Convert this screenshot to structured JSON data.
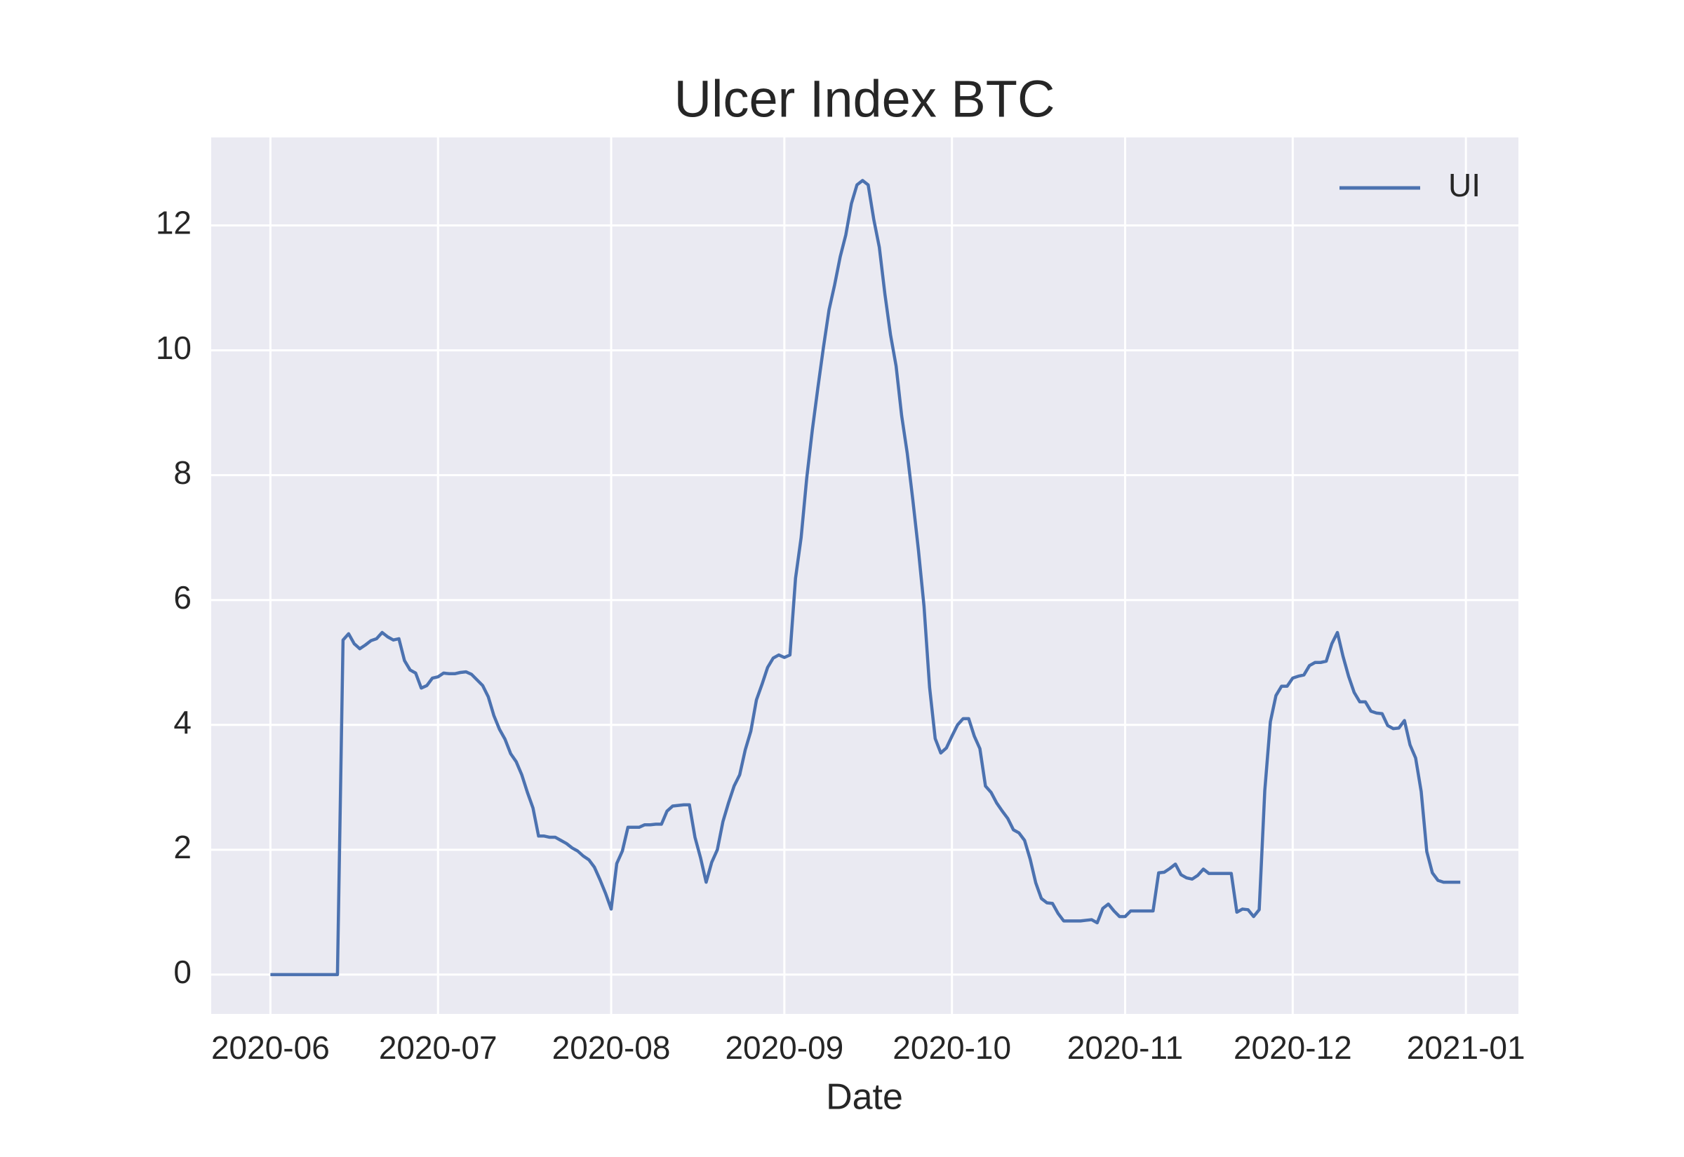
{
  "chart_data": {
    "type": "line",
    "title": "Ulcer Index BTC",
    "xlabel": "Date",
    "x": [
      0,
      1,
      2,
      3,
      4,
      5,
      6,
      7,
      8,
      9,
      10,
      11,
      12,
      13,
      14,
      15,
      16,
      17,
      18,
      19,
      20,
      21,
      22,
      23,
      24,
      25,
      26,
      27,
      28,
      29,
      30,
      31,
      32,
      33,
      34,
      35,
      36,
      37,
      38,
      39,
      40,
      41,
      42,
      43,
      44,
      45,
      46,
      47,
      48,
      49,
      50,
      51,
      52,
      53,
      54,
      55,
      56,
      57,
      58,
      59,
      60,
      61,
      62,
      63,
      64,
      65,
      66,
      67,
      68,
      69,
      70,
      71,
      72,
      73,
      74,
      75,
      76,
      77,
      78,
      79,
      80,
      81,
      82,
      83,
      84,
      85,
      86,
      87,
      88,
      89,
      90,
      91,
      92,
      93,
      94,
      95,
      96,
      97,
      98,
      99,
      100,
      101,
      102,
      103,
      104,
      105,
      106,
      107,
      108,
      109,
      110,
      111,
      112,
      113,
      114,
      115,
      116,
      117,
      118,
      119,
      120,
      121,
      122,
      123,
      124,
      125,
      126,
      127,
      128,
      129,
      130,
      131,
      132,
      133,
      134,
      135,
      136,
      137,
      138,
      139,
      140,
      141,
      142,
      143,
      144,
      145,
      146,
      147,
      148,
      149,
      150,
      151,
      152,
      153,
      154,
      155,
      156,
      157,
      158,
      159,
      160,
      161,
      162,
      163,
      164,
      165,
      166,
      167,
      168,
      169,
      170,
      171,
      172,
      173,
      174,
      175,
      176,
      177,
      178,
      179,
      180,
      181,
      182,
      183,
      184,
      185,
      186,
      187,
      188,
      189,
      190,
      191,
      192,
      193,
      194,
      195,
      196,
      197,
      198,
      199,
      200,
      201,
      202,
      203,
      204,
      205,
      206,
      207,
      208,
      209,
      210,
      211,
      212,
      213
    ],
    "series": [
      {
        "name": "UI",
        "color": "#4c72b0",
        "values": [
          0,
          0,
          0,
          0,
          0,
          0,
          0,
          0,
          0,
          0,
          0,
          0,
          0,
          5.36,
          5.46,
          5.3,
          5.22,
          5.28,
          5.35,
          5.38,
          5.48,
          5.41,
          5.36,
          5.38,
          5.03,
          4.88,
          4.83,
          4.59,
          4.63,
          4.75,
          4.77,
          4.83,
          4.82,
          4.82,
          4.84,
          4.85,
          4.81,
          4.72,
          4.63,
          4.45,
          4.15,
          3.93,
          3.77,
          3.54,
          3.41,
          3.2,
          2.92,
          2.67,
          2.22,
          2.22,
          2.2,
          2.2,
          2.15,
          2.1,
          2.03,
          1.98,
          1.9,
          1.84,
          1.72,
          1.52,
          1.3,
          1.05,
          1.78,
          1.98,
          2.36,
          2.36,
          2.36,
          2.4,
          2.4,
          2.41,
          2.41,
          2.62,
          2.7,
          2.71,
          2.72,
          2.72,
          2.2,
          1.87,
          1.48,
          1.8,
          2.0,
          2.45,
          2.75,
          3.02,
          3.2,
          3.6,
          3.9,
          4.4,
          4.65,
          4.92,
          5.07,
          5.12,
          5.08,
          5.12,
          6.35,
          7.0,
          7.95,
          8.72,
          9.4,
          10.05,
          10.65,
          11.05,
          11.5,
          11.85,
          12.35,
          12.65,
          12.72,
          12.65,
          12.1,
          11.65,
          10.9,
          10.25,
          9.75,
          8.95,
          8.35,
          7.6,
          6.8,
          5.9,
          4.6,
          3.78,
          3.55,
          3.63,
          3.82,
          4.0,
          4.1,
          4.1,
          3.82,
          3.62,
          3.02,
          2.92,
          2.75,
          2.62,
          2.5,
          2.32,
          2.27,
          2.15,
          1.85,
          1.47,
          1.22,
          1.15,
          1.14,
          0.98,
          0.86,
          0.86,
          0.86,
          0.86,
          0.87,
          0.88,
          0.83,
          1.06,
          1.13,
          1.02,
          0.93,
          0.93,
          1.02,
          1.02,
          1.02,
          1.02,
          1.02,
          1.63,
          1.64,
          1.7,
          1.77,
          1.6,
          1.55,
          1.53,
          1.59,
          1.69,
          1.62,
          1.62,
          1.62,
          1.62,
          1.62,
          1.0,
          1.05,
          1.04,
          0.93,
          1.04,
          2.95,
          4.05,
          4.47,
          4.62,
          4.62,
          4.75,
          4.78,
          4.8,
          4.95,
          5.0,
          5.0,
          5.02,
          5.3,
          5.48,
          5.1,
          4.78,
          4.52,
          4.37,
          4.37,
          4.22,
          4.19,
          4.18,
          3.99,
          3.94,
          3.95,
          4.07,
          3.68,
          3.47,
          2.93,
          1.97,
          1.63,
          1.51,
          1.48,
          1.48,
          1.48,
          1.48
        ]
      }
    ],
    "xlim": [
      -10.6,
      223.4
    ],
    "ylim": [
      -0.63,
      13.41
    ],
    "xticks": [
      {
        "value": 0,
        "label": "2020-06"
      },
      {
        "value": 30,
        "label": "2020-07"
      },
      {
        "value": 61,
        "label": "2020-08"
      },
      {
        "value": 92,
        "label": "2020-09"
      },
      {
        "value": 122,
        "label": "2020-10"
      },
      {
        "value": 153,
        "label": "2020-11"
      },
      {
        "value": 183,
        "label": "2020-12"
      },
      {
        "value": 214,
        "label": "2021-01"
      }
    ],
    "yticks": [
      0,
      2,
      4,
      6,
      8,
      10,
      12
    ],
    "grid": true,
    "legend": "upper right"
  }
}
